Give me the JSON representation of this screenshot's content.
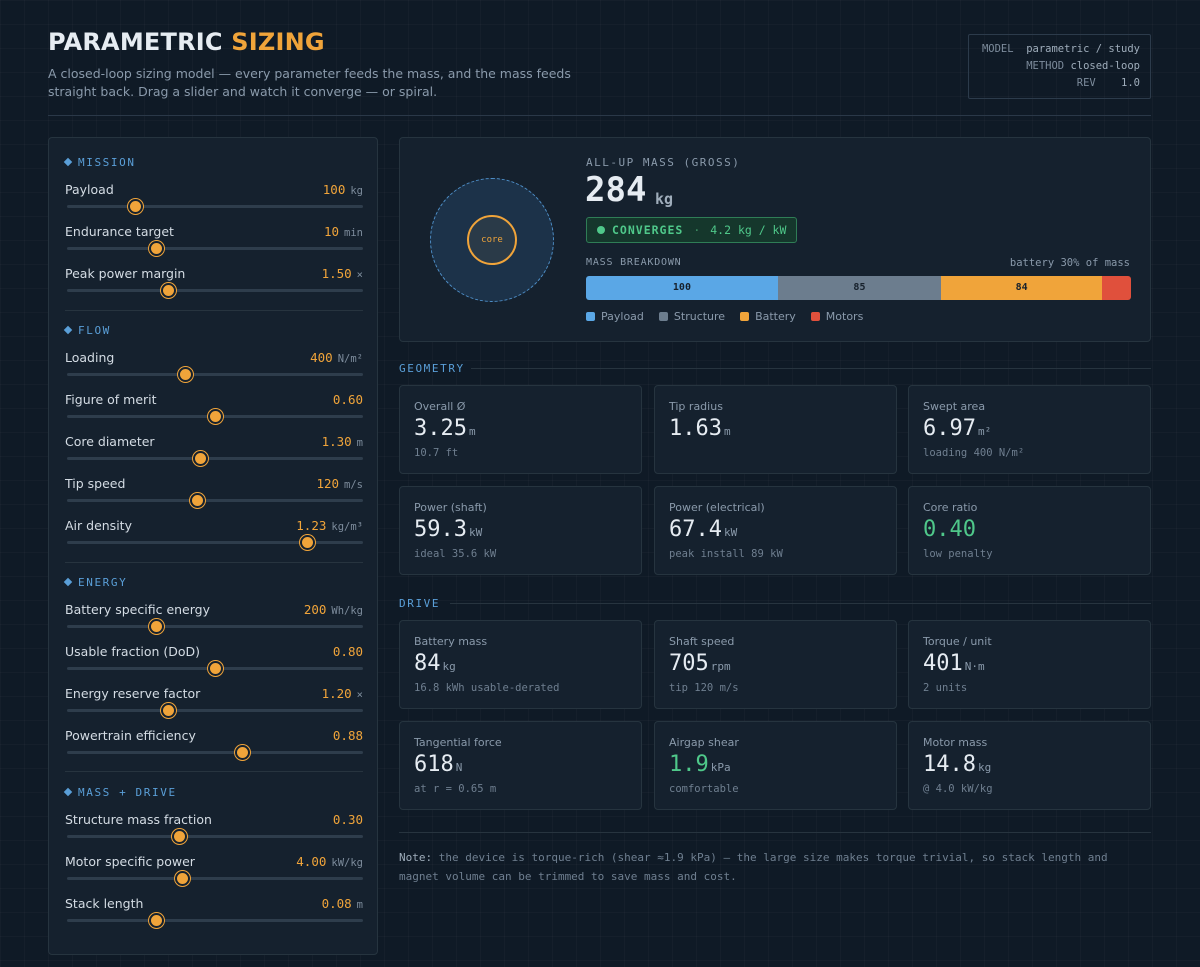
{
  "header": {
    "title_main": "PARAMETRIC",
    "title_accent": "SIZING",
    "subtitle": "A closed-loop sizing model — every parameter feeds the mass, and the mass feeds straight back. Drag a slider and watch it converge — or spiral.",
    "meta": [
      {
        "key": "MODEL",
        "value": "parametric / study"
      },
      {
        "key": "METHOD",
        "value": "closed-loop"
      },
      {
        "key": "REV",
        "value": "1.0"
      }
    ]
  },
  "sections": {
    "mission": "MISSION",
    "flow": "FLOW",
    "energy": "ENERGY",
    "mass_drive": "MASS + DRIVE"
  },
  "sliders": [
    {
      "label": "Payload",
      "value": "100",
      "unit": "kg",
      "fraction": 0.23
    },
    {
      "label": "Endurance target",
      "value": "10",
      "unit": "min",
      "fraction": 0.3
    },
    {
      "label": "Peak power margin",
      "value": "1.50",
      "unit": "×",
      "fraction": 0.34
    },
    {
      "label": "Loading",
      "value": "400",
      "unit": "N/m²",
      "fraction": 0.4
    },
    {
      "label": "Figure of merit",
      "value": "0.60",
      "unit": "",
      "fraction": 0.5
    },
    {
      "label": "Core diameter",
      "value": "1.30",
      "unit": "m",
      "fraction": 0.45
    },
    {
      "label": "Tip speed",
      "value": "120",
      "unit": "m/s",
      "fraction": 0.44
    },
    {
      "label": "Air density",
      "value": "1.23",
      "unit": "kg/m³",
      "fraction": 0.81
    },
    {
      "label": "Battery specific energy",
      "value": "200",
      "unit": "Wh/kg",
      "fraction": 0.3
    },
    {
      "label": "Usable fraction (DoD)",
      "value": "0.80",
      "unit": "",
      "fraction": 0.5
    },
    {
      "label": "Energy reserve factor",
      "value": "1.20",
      "unit": "×",
      "fraction": 0.34
    },
    {
      "label": "Powertrain efficiency",
      "value": "0.88",
      "unit": "",
      "fraction": 0.59
    },
    {
      "label": "Structure mass fraction",
      "value": "0.30",
      "unit": "",
      "fraction": 0.38
    },
    {
      "label": "Motor specific power",
      "value": "4.00",
      "unit": "kW/kg",
      "fraction": 0.39
    },
    {
      "label": "Stack length",
      "value": "0.08",
      "unit": "m",
      "fraction": 0.3
    }
  ],
  "summary": {
    "core_label": "core",
    "mass_label": "ALL-UP MASS (GROSS)",
    "mass_value": "284",
    "mass_unit": "kg",
    "status": "CONVERGES",
    "status_detail": "4.2 kg / kW",
    "breakdown_title": "MASS BREAKDOWN",
    "breakdown_note": "battery 30% of mass",
    "segments": [
      {
        "name": "Payload",
        "value": 100,
        "label": "100",
        "color": "#5aa7e6"
      },
      {
        "name": "Structure",
        "value": 85,
        "label": "85",
        "color": "#6c7d8e"
      },
      {
        "name": "Battery",
        "value": 84,
        "label": "84",
        "color": "#f0a43a"
      },
      {
        "name": "Motors",
        "value": 15,
        "label": "",
        "color": "#e0503c"
      }
    ]
  },
  "geometry_title": "GEOMETRY",
  "drive_title": "DRIVE",
  "geometry": [
    {
      "label": "Overall Ø",
      "value": "3.25",
      "unit": "m",
      "sub": "10.7 ft",
      "good": false
    },
    {
      "label": "Tip radius",
      "value": "1.63",
      "unit": "m",
      "sub": "",
      "good": false
    },
    {
      "label": "Swept area",
      "value": "6.97",
      "unit": "m²",
      "sub": "loading 400 N/m²",
      "good": false
    },
    {
      "label": "Power (shaft)",
      "value": "59.3",
      "unit": "kW",
      "sub": "ideal 35.6 kW",
      "good": false
    },
    {
      "label": "Power (electrical)",
      "value": "67.4",
      "unit": "kW",
      "sub": "peak install 89 kW",
      "good": false
    },
    {
      "label": "Core ratio",
      "value": "0.40",
      "unit": "",
      "sub": "low penalty",
      "good": true
    }
  ],
  "drive": [
    {
      "label": "Battery mass",
      "value": "84",
      "unit": "kg",
      "sub": "16.8 kWh usable-derated",
      "good": false
    },
    {
      "label": "Shaft speed",
      "value": "705",
      "unit": "rpm",
      "sub": "tip 120 m/s",
      "good": false
    },
    {
      "label": "Torque / unit",
      "value": "401",
      "unit": "N·m",
      "sub": "2 units",
      "good": false
    },
    {
      "label": "Tangential force",
      "value": "618",
      "unit": "N",
      "sub": "at r = 0.65 m",
      "good": false
    },
    {
      "label": "Airgap shear",
      "value": "1.9",
      "unit": "kPa",
      "sub": "comfortable",
      "good": true
    },
    {
      "label": "Motor mass",
      "value": "14.8",
      "unit": "kg",
      "sub": "@ 4.0 kW/kg",
      "good": false
    }
  ],
  "note": {
    "lead": "Note:",
    "text": "the device is torque-rich (shear ≈1.9 kPa) — the large size makes torque trivial, so stack length and magnet volume can be trimmed to save mass and cost."
  }
}
